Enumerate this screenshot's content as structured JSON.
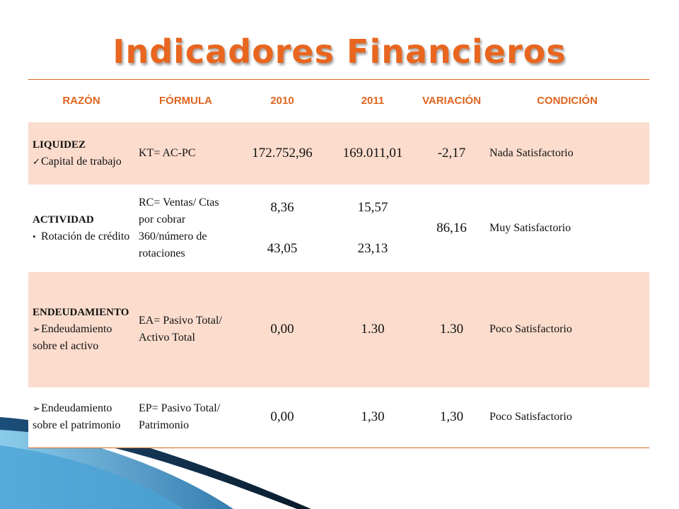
{
  "slide": {
    "title": "Indicadores Financieros"
  },
  "table": {
    "headers": [
      "RAZÓN",
      "FÓRMULA",
      "2010",
      "2011",
      "VARIACIÓN",
      "CONDICIÓN"
    ],
    "rows": [
      {
        "razon_head": "LIQUIDEZ",
        "razon_item": "Capital de trabajo",
        "bullet_icon": "checkmark",
        "formula": "KT= AC-PC",
        "y2010": "172.752,96",
        "y2011": "169.011,01",
        "variacion": "-2,17",
        "condicion": "Nada Satisfactorio"
      },
      {
        "razon_head": "ACTIVIDAD",
        "razon_item": "Rotación de crédito",
        "bullet_icon": "dot",
        "formula_a": "RC= Ventas/ Ctas por cobrar",
        "formula_b": "360/número de rotaciones",
        "y2010_a": "8,36",
        "y2010_b": "43,05",
        "y2011_a": "15,57",
        "y2011_b": "23,13",
        "variacion": "86,16",
        "condicion": "Muy Satisfactorio"
      },
      {
        "razon_head": "ENDEUDAMIENTO",
        "razon_item": "Endeudamiento sobre el activo",
        "bullet_icon": "arrowhead",
        "formula": "EA= Pasivo Total/ Activo Total",
        "y2010": "0,00",
        "y2011": "1.30",
        "variacion": "1.30",
        "condicion": "Poco Satisfactorio"
      },
      {
        "razon_item": "Endeudamiento sobre el patrimonio",
        "bullet_icon": "arrowhead",
        "formula": "EP= Pasivo Total/ Patrimonio",
        "y2010": "0,00",
        "y2011": "1,30",
        "variacion": "1,30",
        "condicion": "Poco Satisfactorio"
      }
    ]
  },
  "colors": {
    "accent": "#e8661f",
    "row_fill": "#fbdccd",
    "swoosh_dark": "#0a1a2a",
    "swoosh_blue": "#2f8fc8"
  }
}
